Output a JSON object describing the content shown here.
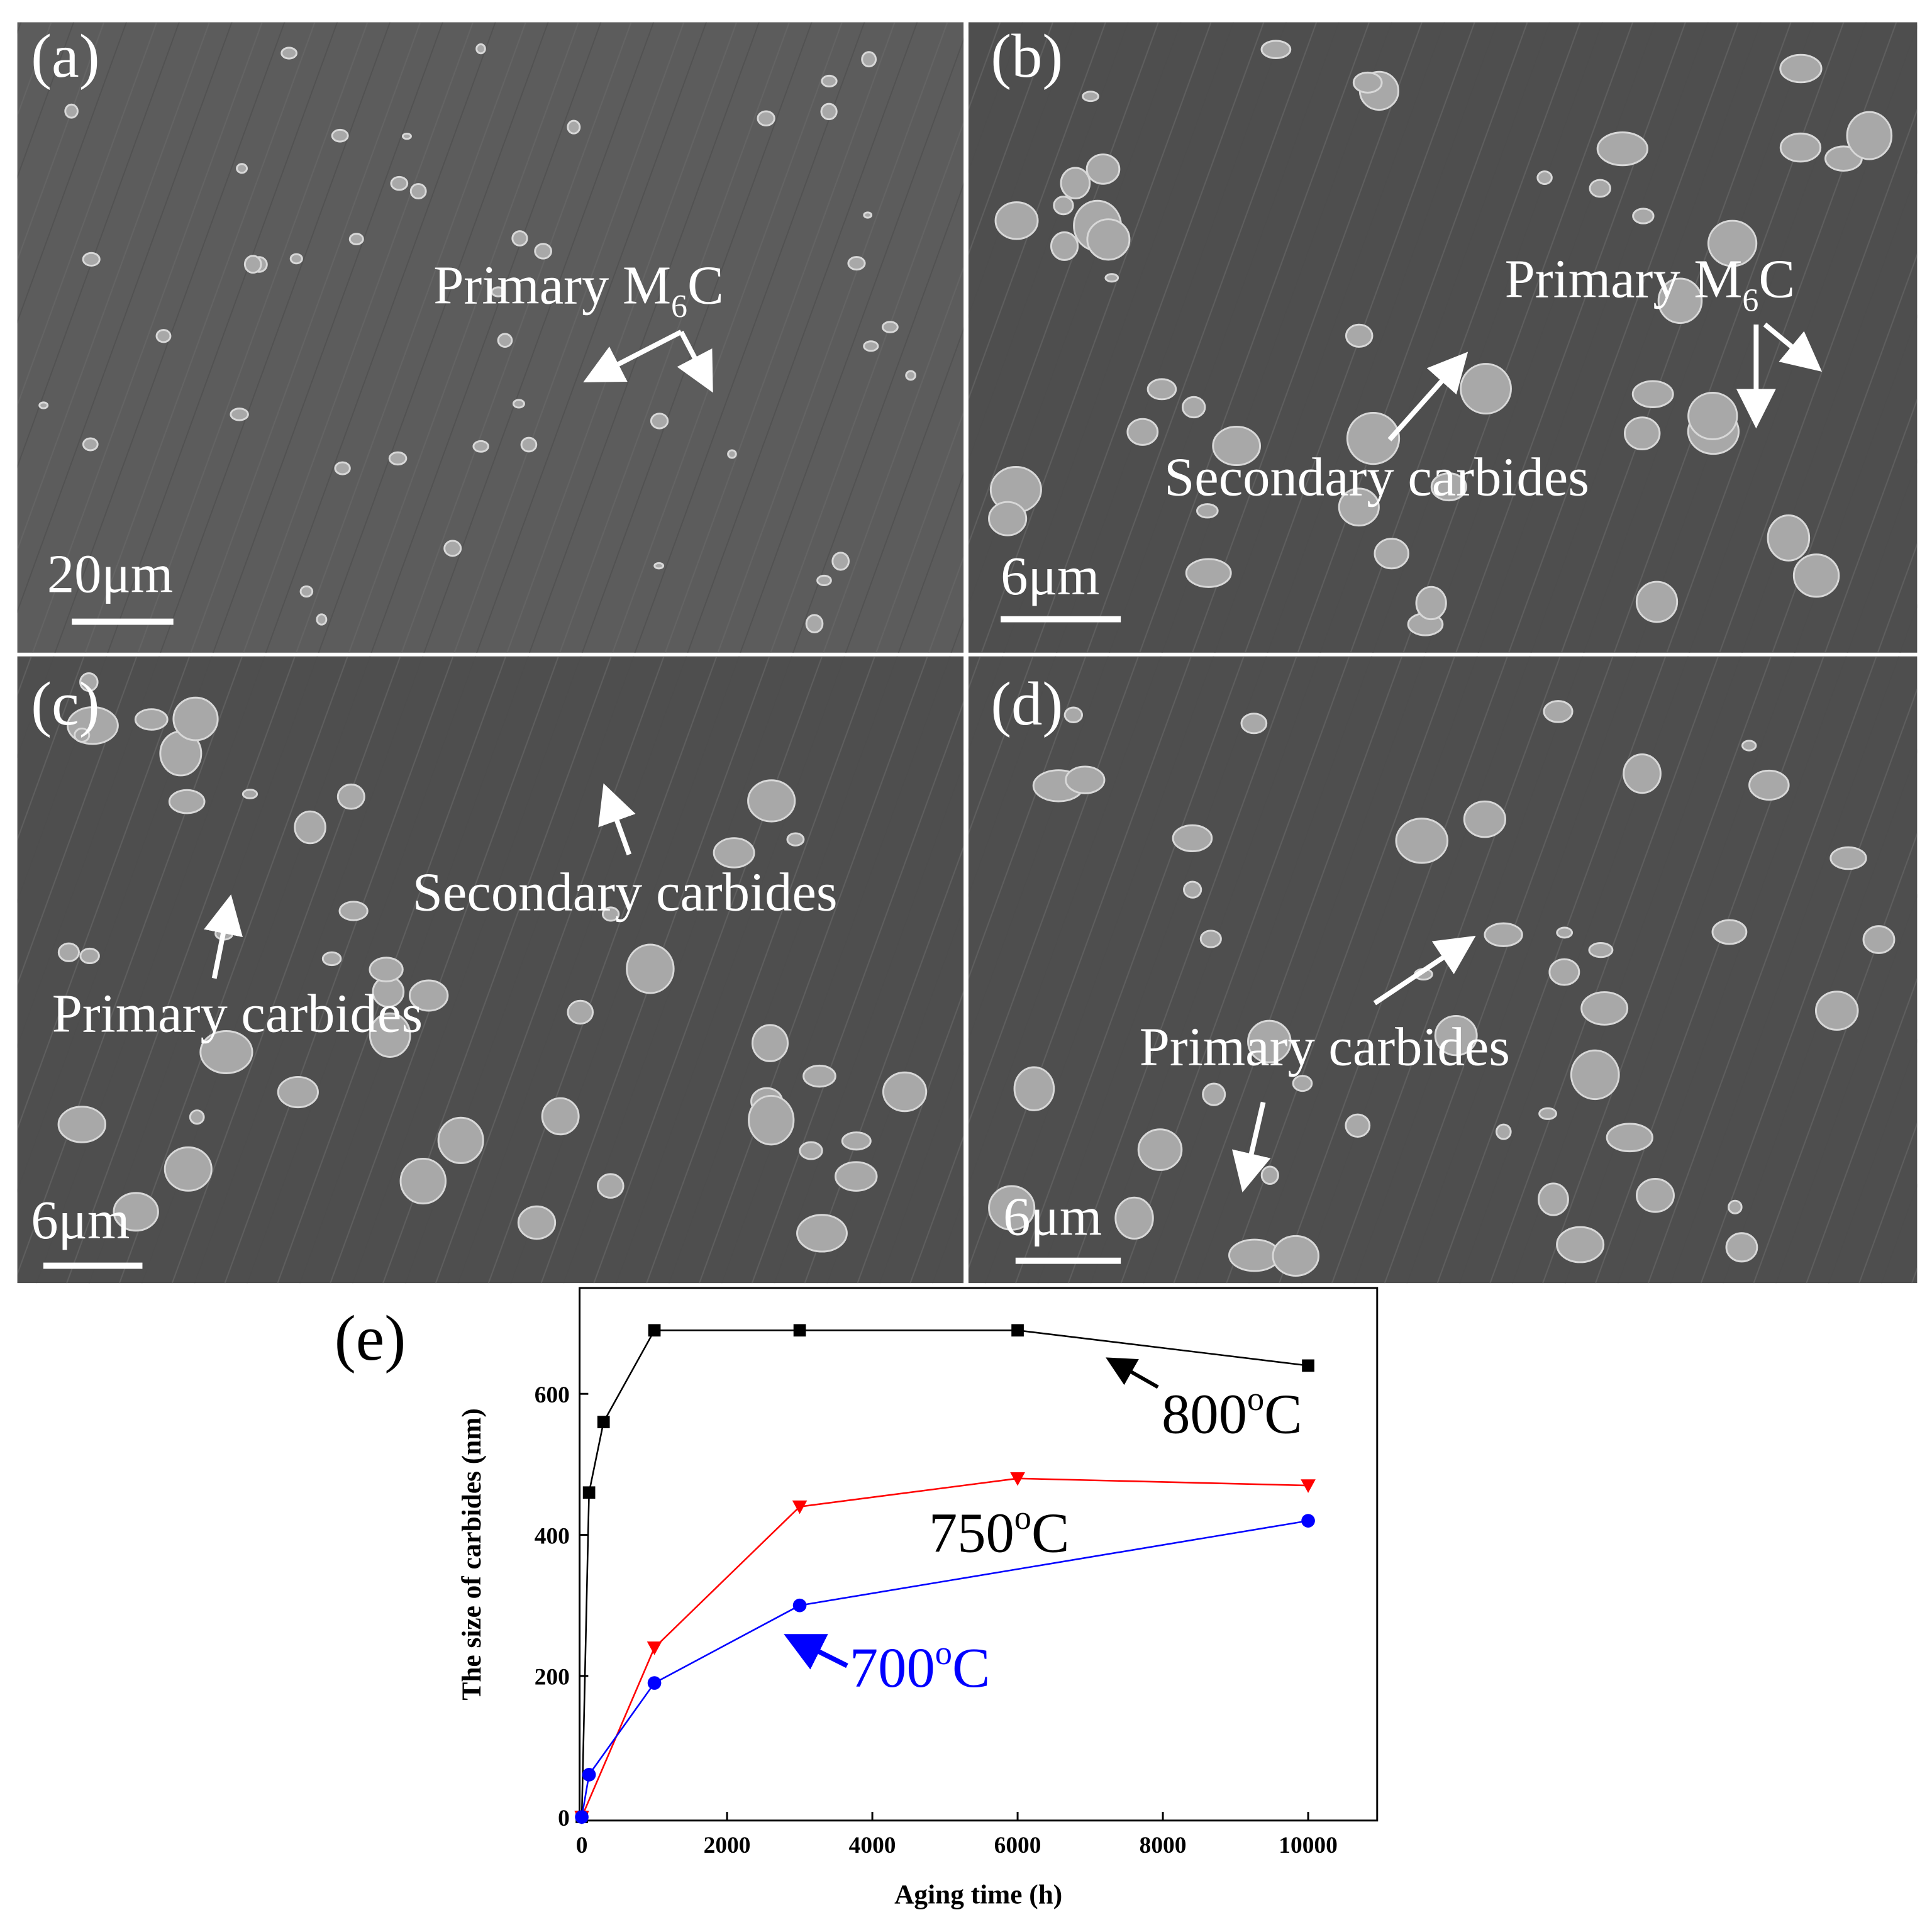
{
  "micrographs": [
    {
      "label": "(a)",
      "scale_bar": "20μm",
      "annotations": [
        {
          "main": "Primary M",
          "sub": "6",
          "tail": "C"
        }
      ]
    },
    {
      "label": "(b)",
      "scale_bar": "6μm",
      "annotations": [
        {
          "main": "Primary M",
          "sub": "6",
          "tail": "C"
        },
        {
          "main": "Secondary carbides"
        }
      ]
    },
    {
      "label": "(c)",
      "scale_bar": "6μm",
      "annotations": [
        {
          "main": "Secondary carbides"
        },
        {
          "main": "Primary carbides"
        }
      ]
    },
    {
      "label": "(d)",
      "scale_bar": "6μm",
      "annotations": [
        {
          "main": "Primary carbides"
        }
      ]
    }
  ],
  "chart_data": {
    "type": "line",
    "panel_label": "(e)",
    "x_label": "Aging time (h)",
    "y_label": "The size of carbides (nm)",
    "xlim": [
      -30,
      10950
    ],
    "ylim": [
      -5,
      750
    ],
    "xticks": [
      0,
      2000,
      4000,
      6000,
      8000,
      10000
    ],
    "yticks": [
      0,
      200,
      400,
      600
    ],
    "series": [
      {
        "color": "#000000",
        "marker": "square",
        "x": [
          0,
          100,
          300,
          1000,
          3000,
          6000,
          10000
        ],
        "values": [
          0,
          460,
          560,
          690,
          690,
          690,
          640
        ]
      },
      {
        "color": "#ff0000",
        "marker": "triangle-down",
        "x": [
          0,
          1000,
          3000,
          6000,
          10000
        ],
        "values": [
          0,
          240,
          440,
          480,
          470
        ]
      },
      {
        "color": "#0000ff",
        "marker": "circle",
        "x": [
          0,
          100,
          1000,
          3000,
          10000
        ],
        "values": [
          0,
          60,
          190,
          300,
          420
        ]
      }
    ],
    "annotations": [
      {
        "main": "800",
        "sup": "o",
        "tail": "C",
        "color": "#000000"
      },
      {
        "main": "750",
        "sup": "o",
        "tail": "C",
        "color": "#000000"
      },
      {
        "main": "700",
        "sup": "o",
        "tail": "C",
        "color": "#0000ff"
      }
    ]
  }
}
